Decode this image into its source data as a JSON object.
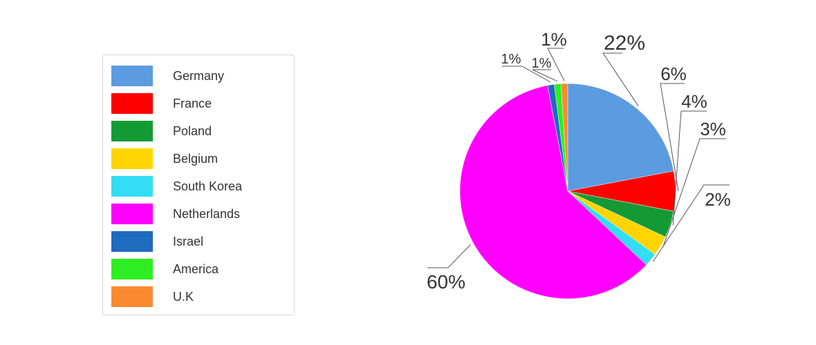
{
  "chart_data": {
    "type": "pie",
    "title": "",
    "legend_position": "left",
    "series": [
      {
        "name": "Germany",
        "value": 22,
        "label": "22%",
        "color": "#5B9BDF"
      },
      {
        "name": "France",
        "value": 6,
        "label": "6%",
        "color": "#FF0000"
      },
      {
        "name": "Poland",
        "value": 4,
        "label": "4%",
        "color": "#149A35"
      },
      {
        "name": "Belgium",
        "value": 3,
        "label": "3%",
        "color": "#FFD400"
      },
      {
        "name": "South Korea",
        "value": 2,
        "label": "2%",
        "color": "#33DDF6"
      },
      {
        "name": "Netherlands",
        "value": 60,
        "label": "60%",
        "color": "#FF00FF"
      },
      {
        "name": "Israel",
        "value": 1,
        "label": "1%",
        "color": "#1F6BBF"
      },
      {
        "name": "America",
        "value": 1,
        "label": "1%",
        "color": "#2EEE22"
      },
      {
        "name": "U.K",
        "value": 1,
        "label": "1%",
        "color": "#F98A32"
      }
    ]
  }
}
